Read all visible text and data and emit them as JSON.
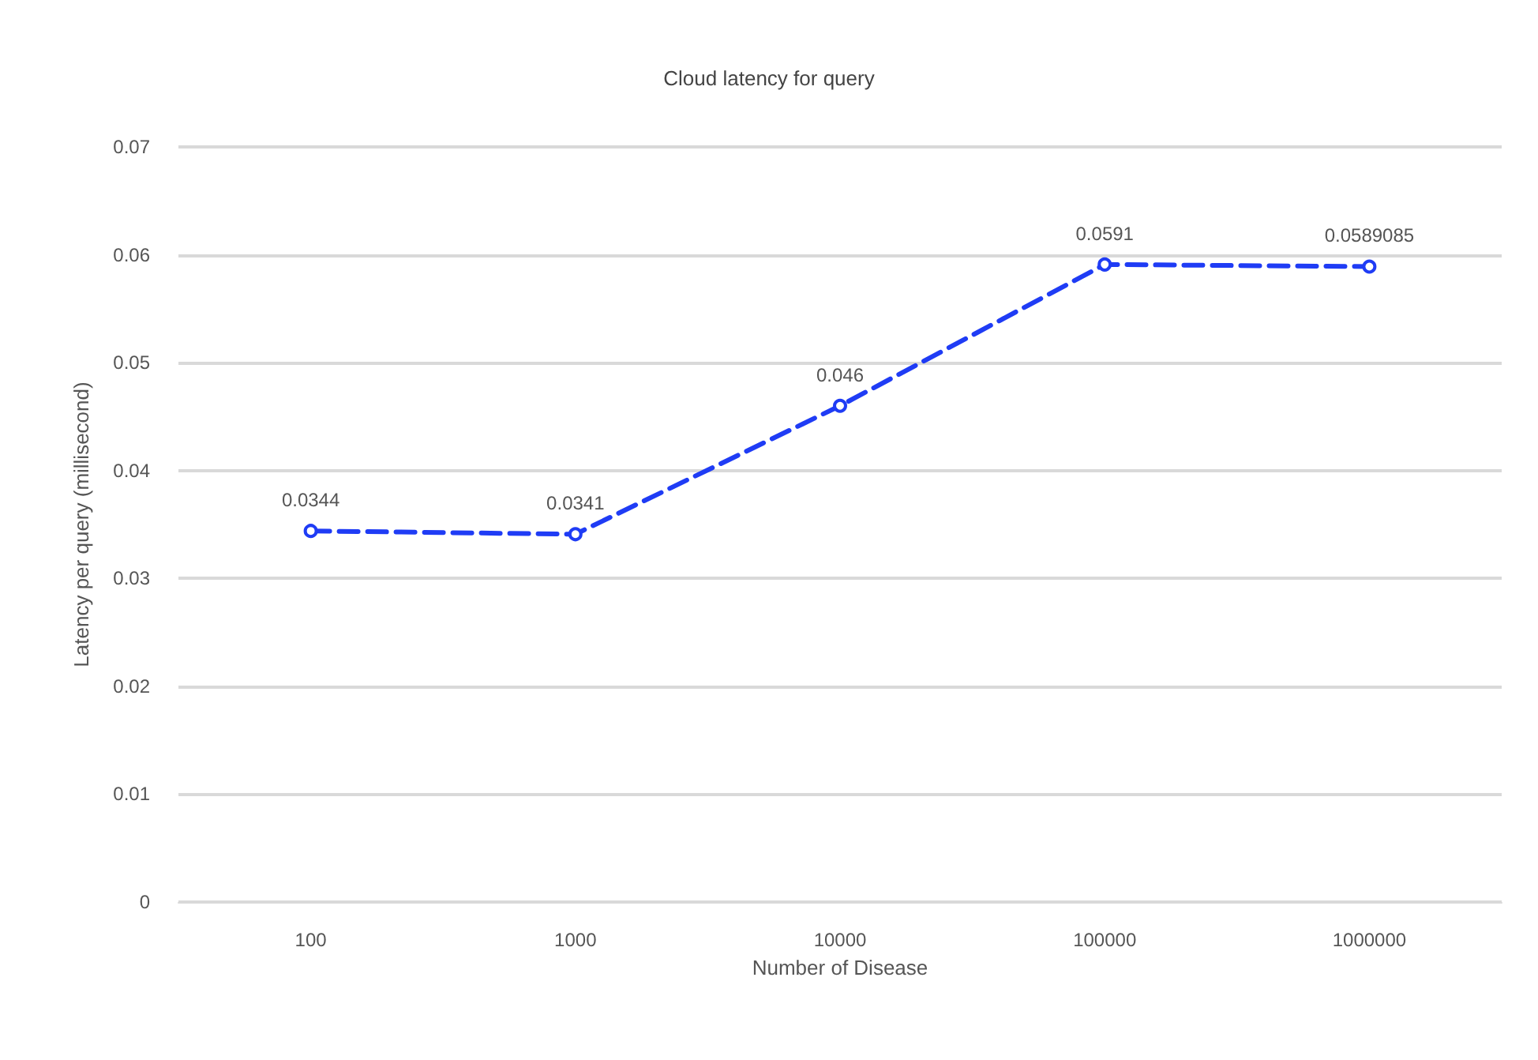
{
  "chart_data": {
    "type": "line",
    "title": "Cloud latency for query",
    "xlabel": "Number of Disease",
    "ylabel": "Latency per query (millisecond)",
    "categories": [
      "100",
      "1000",
      "10000",
      "100000",
      "1000000"
    ],
    "series": [
      {
        "color": "#1f3cf5",
        "values": [
          0.0344,
          0.0341,
          0.046,
          0.0591,
          0.0589085
        ]
      }
    ],
    "ylim": [
      0,
      0.07
    ],
    "yticks": [
      0,
      0.01,
      0.02,
      0.03,
      0.04,
      0.05,
      0.06,
      0.07
    ],
    "grid": "y",
    "marker": "circle",
    "line_style": "dashed",
    "data_labels": true
  }
}
